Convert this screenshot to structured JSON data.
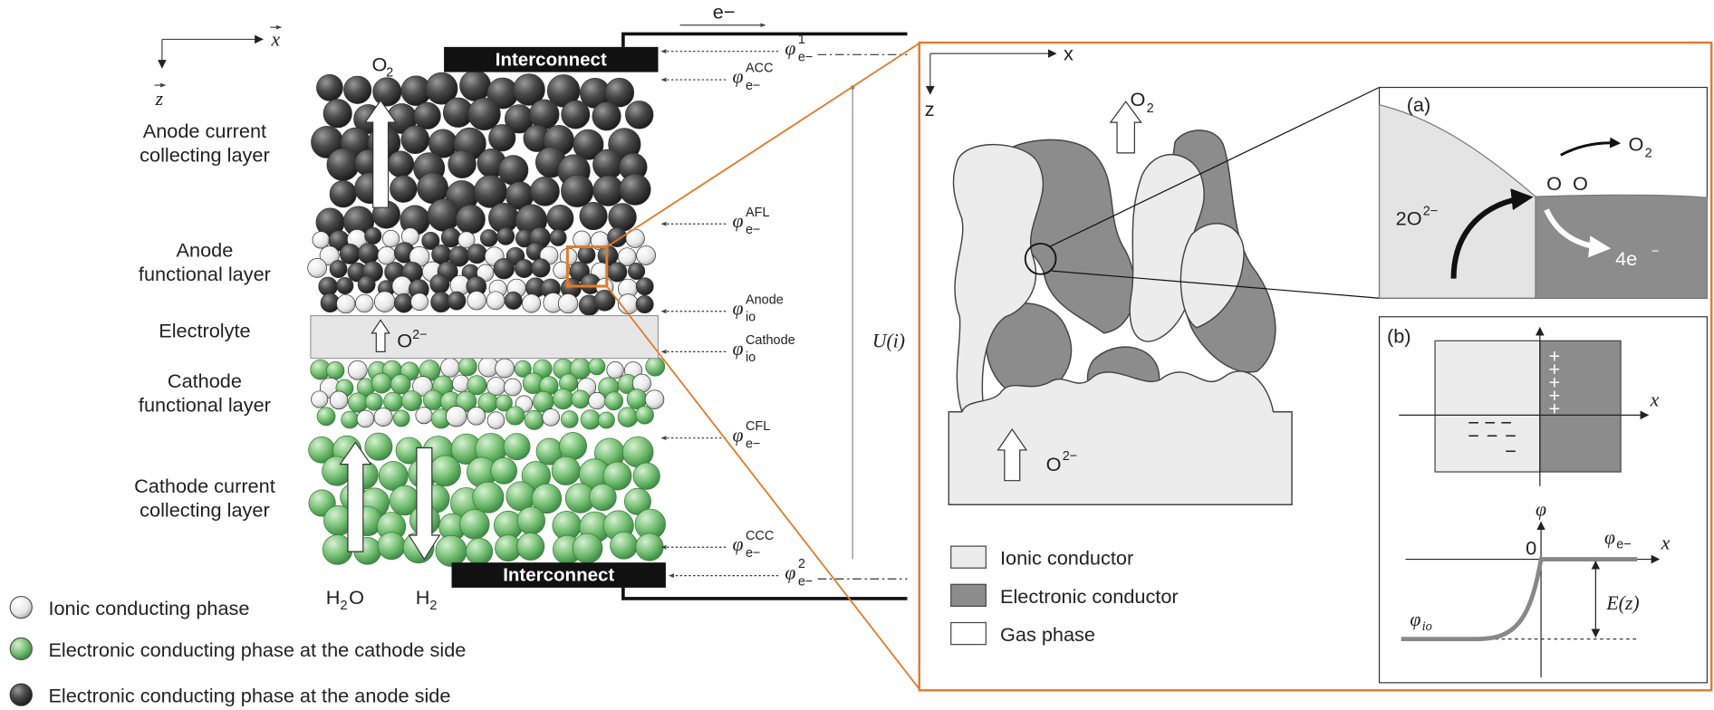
{
  "left_panel": {
    "axis_x": "x",
    "axis_z": "z",
    "top_gas": {
      "main": "O",
      "sub": "2"
    },
    "electron": "e−",
    "interconnect_top": "Interconnect",
    "interconnect_bottom": "Interconnect",
    "layers": [
      [
        "Anode current",
        "collecting layer"
      ],
      [
        "Anode",
        "functional layer"
      ],
      [
        "Electrolyte"
      ],
      [
        "Cathode",
        "functional layer"
      ],
      [
        "Cathode current",
        "collecting layer"
      ]
    ],
    "electrolyte_ion": {
      "main": "O",
      "sup": "2−"
    },
    "bottom_gases": [
      {
        "main": "H",
        "sub": "2",
        "tail": "O"
      },
      {
        "main": "H",
        "sub": "2"
      }
    ],
    "potentials": [
      {
        "symbol": "φ",
        "sup": "1",
        "sub": "e−"
      },
      {
        "symbol": "φ",
        "sup": "ACC",
        "sub": "e−"
      },
      {
        "symbol": "φ",
        "sup": "AFL",
        "sub": "e−"
      },
      {
        "symbol": "φ",
        "sup": "Anode",
        "sub": "io"
      },
      {
        "symbol": "φ",
        "sup": "Cathode",
        "sub": "io"
      },
      {
        "symbol": "φ",
        "sup": "CFL",
        "sub": "e−"
      },
      {
        "symbol": "φ",
        "sup": "CCC",
        "sub": "e−"
      },
      {
        "symbol": "φ",
        "sup": "2",
        "sub": "e−"
      }
    ],
    "voltage": "U(i)"
  },
  "legend": [
    "Ionic conducting phase",
    "Electronic conducting phase at the cathode side",
    "Electronic conducting phase at the anode side"
  ],
  "micro_panel": {
    "axis_x": "x",
    "axis_z": "z",
    "gas": {
      "main": "O",
      "sub": "2"
    },
    "ion": {
      "main": "O",
      "sup": "2−"
    },
    "legend": [
      "Ionic conductor",
      "Electronic conductor",
      "Gas phase"
    ]
  },
  "inset_a": {
    "label": "(a)",
    "gas": {
      "main": "O",
      "sub": "2"
    },
    "atoms": "O  O",
    "ion": {
      "main": "2O",
      "sup": "2−"
    },
    "electrons": {
      "main": "4e",
      "sup": "−"
    }
  },
  "inset_b": {
    "label": "(b)",
    "axis_x_top": "x",
    "plus": "+",
    "minus": "−",
    "axis_phi": "φ",
    "origin": "0",
    "phi_e": {
      "symbol": "φ",
      "sub": "e−"
    },
    "axis_x_bottom": "x",
    "field": "E(z)",
    "phi_io": {
      "symbol": "φ",
      "sub": "io"
    }
  }
}
